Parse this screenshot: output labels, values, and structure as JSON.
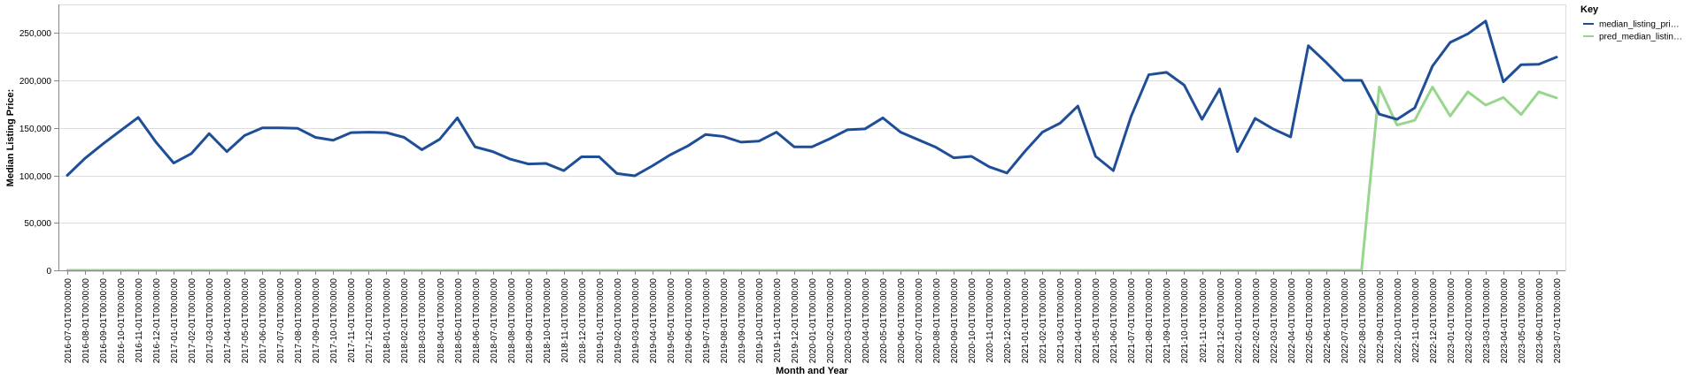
{
  "chart_data": {
    "type": "line",
    "xlabel": "Month and Year",
    "ylabel": "Median Listing Price:",
    "ylim": [
      0,
      280000
    ],
    "yticks": [
      0,
      50000,
      100000,
      150000,
      200000,
      250000
    ],
    "ytick_labels": [
      "0",
      "50,000",
      "100,000",
      "150,000",
      "200,000",
      "250,000"
    ],
    "grid": true,
    "legend": {
      "title": "Key",
      "placement": "top-right"
    },
    "x": [
      "2016-07-01T00:00:00",
      "2016-08-01T00:00:00",
      "2016-09-01T00:00:00",
      "2016-10-01T00:00:00",
      "2016-11-01T00:00:00",
      "2016-12-01T00:00:00",
      "2017-01-01T00:00:00",
      "2017-02-01T00:00:00",
      "2017-03-01T00:00:00",
      "2017-04-01T00:00:00",
      "2017-05-01T00:00:00",
      "2017-06-01T00:00:00",
      "2017-07-01T00:00:00",
      "2017-08-01T00:00:00",
      "2017-09-01T00:00:00",
      "2017-10-01T00:00:00",
      "2017-11-01T00:00:00",
      "2017-12-01T00:00:00",
      "2018-01-01T00:00:00",
      "2018-02-01T00:00:00",
      "2018-03-01T00:00:00",
      "2018-04-01T00:00:00",
      "2018-05-01T00:00:00",
      "2018-06-01T00:00:00",
      "2018-07-01T00:00:00",
      "2018-08-01T00:00:00",
      "2018-09-01T00:00:00",
      "2018-10-01T00:00:00",
      "2018-11-01T00:00:00",
      "2018-12-01T00:00:00",
      "2019-01-01T00:00:00",
      "2019-02-01T00:00:00",
      "2019-03-01T00:00:00",
      "2019-04-01T00:00:00",
      "2019-05-01T00:00:00",
      "2019-06-01T00:00:00",
      "2019-07-01T00:00:00",
      "2019-08-01T00:00:00",
      "2019-09-01T00:00:00",
      "2019-10-01T00:00:00",
      "2019-11-01T00:00:00",
      "2019-12-01T00:00:00",
      "2020-01-01T00:00:00",
      "2020-02-01T00:00:00",
      "2020-03-01T00:00:00",
      "2020-04-01T00:00:00",
      "2020-05-01T00:00:00",
      "2020-06-01T00:00:00",
      "2020-07-01T00:00:00",
      "2020-08-01T00:00:00",
      "2020-09-01T00:00:00",
      "2020-10-01T00:00:00",
      "2020-11-01T00:00:00",
      "2020-12-01T00:00:00",
      "2021-01-01T00:00:00",
      "2021-02-01T00:00:00",
      "2021-03-01T00:00:00",
      "2021-04-01T00:00:00",
      "2021-05-01T00:00:00",
      "2021-06-01T00:00:00",
      "2021-07-01T00:00:00",
      "2021-08-01T00:00:00",
      "2021-09-01T00:00:00",
      "2021-10-01T00:00:00",
      "2021-11-01T00:00:00",
      "2021-12-01T00:00:00",
      "2022-01-01T00:00:00",
      "2022-02-01T00:00:00",
      "2022-03-01T00:00:00",
      "2022-04-01T00:00:00",
      "2022-05-01T00:00:00",
      "2022-06-01T00:00:00",
      "2022-07-01T00:00:00",
      "2022-08-01T00:00:00",
      "2022-09-01T00:00:00",
      "2022-10-01T00:00:00",
      "2022-11-01T00:00:00",
      "2022-12-01T00:00:00",
      "2023-01-01T00:00:00",
      "2023-02-01T00:00:00",
      "2023-03-01T00:00:00",
      "2023-04-01T00:00:00",
      "2023-05-01T00:00:00",
      "2023-06-01T00:00:00",
      "2023-07-01T00:00:00"
    ],
    "series": [
      {
        "name": "median_listing_pri…",
        "color": "#1f4e99",
        "values": [
          100000,
          118000,
          133000,
          147000,
          161000,
          135000,
          113000,
          123000,
          144000,
          125000,
          142000,
          150000,
          150000,
          149500,
          140000,
          137000,
          145000,
          145500,
          145000,
          140000,
          127000,
          138000,
          160500,
          130000,
          125000,
          117000,
          112000,
          112500,
          105000,
          119500,
          119500,
          102000,
          99500,
          110000,
          121500,
          131000,
          143000,
          141000,
          135000,
          136000,
          145500,
          130000,
          130000,
          138500,
          148000,
          149000,
          160500,
          145500,
          137500,
          129500,
          118500,
          120000,
          109000,
          102500,
          125000,
          145500,
          155000,
          173000,
          120000,
          105000,
          162000,
          206000,
          208500,
          195000,
          159000,
          191000,
          125000,
          160000,
          149000,
          140500,
          236500,
          219000,
          200000,
          200000,
          164500,
          159000,
          171000,
          215000,
          240000,
          249000,
          262500,
          198500,
          216500,
          217000,
          224500
        ]
      },
      {
        "name": "pred_median_listin…",
        "color": "#98d68e",
        "values": [
          0,
          0,
          0,
          0,
          0,
          0,
          0,
          0,
          0,
          0,
          0,
          0,
          0,
          0,
          0,
          0,
          0,
          0,
          0,
          0,
          0,
          0,
          0,
          0,
          0,
          0,
          0,
          0,
          0,
          0,
          0,
          0,
          0,
          0,
          0,
          0,
          0,
          0,
          0,
          0,
          0,
          0,
          0,
          0,
          0,
          0,
          0,
          0,
          0,
          0,
          0,
          0,
          0,
          0,
          0,
          0,
          0,
          0,
          0,
          0,
          0,
          0,
          0,
          0,
          0,
          0,
          0,
          0,
          0,
          0,
          0,
          0,
          0,
          0,
          193000,
          153000,
          158000,
          193000,
          162500,
          188000,
          174000,
          182000,
          164000,
          188000,
          181500
        ]
      }
    ]
  }
}
